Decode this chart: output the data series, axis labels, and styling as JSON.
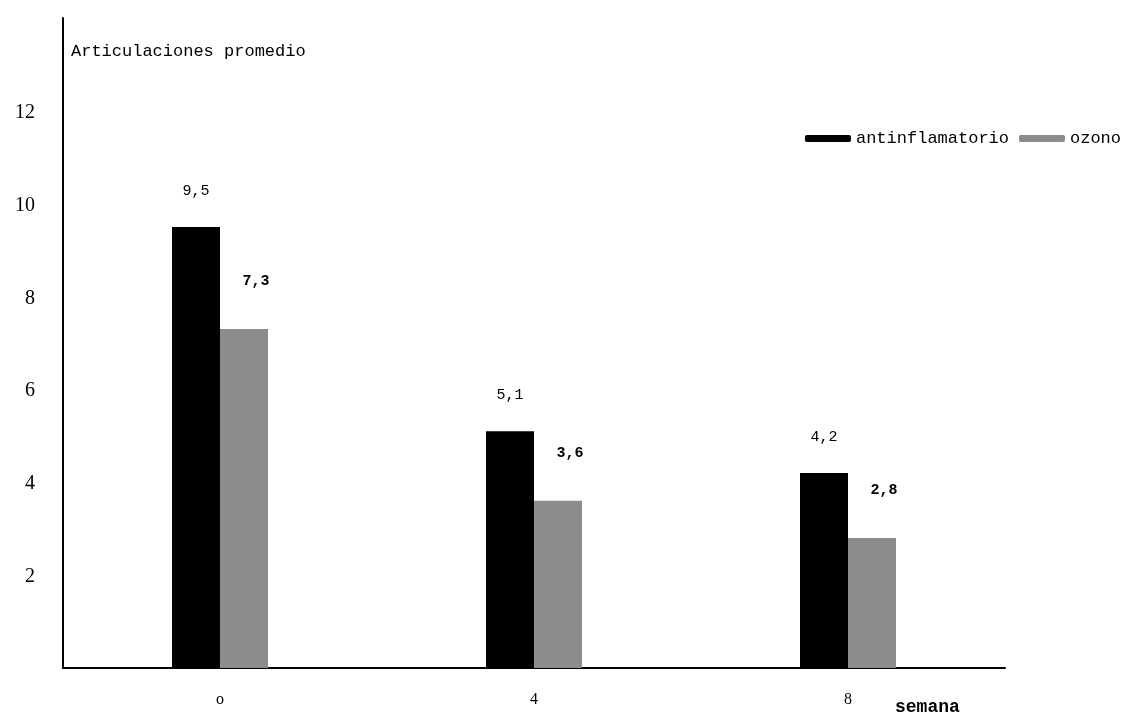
{
  "chart_data": {
    "type": "bar",
    "categories": [
      "o",
      "4",
      "8"
    ],
    "series": [
      {
        "name": "antinflamatorio",
        "color": "#000000",
        "values": [
          9.5,
          5.1,
          4.2
        ],
        "value_labels": [
          "9,5",
          "5,1",
          "4,2"
        ]
      },
      {
        "name": "ozono",
        "color": "#8c8c8c",
        "values": [
          7.3,
          3.6,
          2.8
        ],
        "value_labels": [
          "7,3",
          "3,6",
          "2,8"
        ]
      }
    ],
    "xlabel": "semana",
    "ylabel": "Articulaciones promedio",
    "ylim": [
      0,
      14
    ],
    "yticks": [
      2,
      4,
      6,
      8,
      10,
      12
    ],
    "grid": false,
    "legend": "top right"
  }
}
